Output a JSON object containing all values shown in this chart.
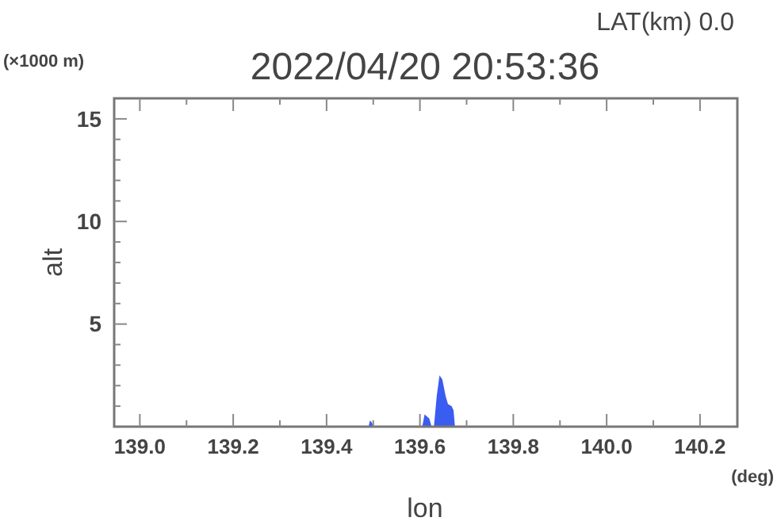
{
  "chart_data": {
    "type": "area",
    "title": "2022/04/20 20:53:36",
    "subtitle": "LAT(km) 0.0",
    "xlabel": "lon",
    "ylabel": "alt",
    "annotations": [
      "(×1000 m)",
      "(deg)"
    ],
    "xlim": [
      138.945,
      140.28
    ],
    "ylim": [
      0,
      16
    ],
    "xticks": [
      {
        "value": 139,
        "label": "139.0"
      },
      {
        "value": 139.1,
        "label": null
      },
      {
        "value": 139.2,
        "label": "139.2"
      },
      {
        "value": 139.3,
        "label": null
      },
      {
        "value": 139.4,
        "label": "139.4"
      },
      {
        "value": 139.5,
        "label": null
      },
      {
        "value": 139.6,
        "label": "139.6"
      },
      {
        "value": 139.7,
        "label": null
      },
      {
        "value": 139.8,
        "label": "139.8"
      },
      {
        "value": 139.9,
        "label": null
      },
      {
        "value": 140,
        "label": "140.0"
      },
      {
        "value": 140.1,
        "label": null
      },
      {
        "value": 140.2,
        "label": "140.2"
      }
    ],
    "yticks": [
      {
        "value": 1,
        "label": null
      },
      {
        "value": 2,
        "label": null
      },
      {
        "value": 3,
        "label": null
      },
      {
        "value": 4,
        "label": null
      },
      5,
      {
        "value": 6,
        "label": null
      },
      {
        "value": 7,
        "label": null
      },
      {
        "value": 8,
        "label": null
      },
      {
        "value": 9,
        "label": null
      },
      10,
      {
        "value": 11,
        "label": null
      },
      {
        "value": 12,
        "label": null
      },
      {
        "value": 13,
        "label": null
      },
      {
        "value": 14,
        "label": null
      },
      15
    ],
    "series": [
      {
        "color": "#3a5cf0",
        "x": [
          139.49,
          139.493,
          139.497,
          139.5,
          139.605,
          139.61,
          139.62,
          139.625,
          139.63,
          139.636,
          139.642,
          139.648,
          139.655,
          139.66,
          139.668,
          139.672,
          139.675
        ],
        "values": [
          0,
          0.3,
          0.2,
          0,
          0,
          0.6,
          0.4,
          0,
          0,
          1.5,
          2.5,
          2.3,
          1.5,
          1.1,
          1.0,
          0.8,
          0
        ]
      }
    ]
  }
}
